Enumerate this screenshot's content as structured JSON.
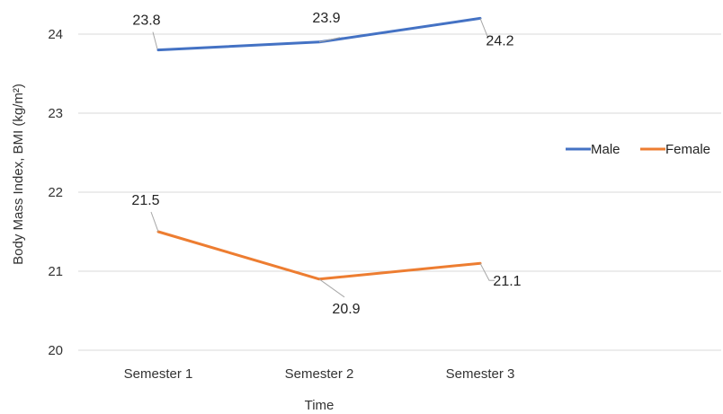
{
  "chart_data": {
    "type": "line",
    "title": "",
    "xlabel": "Time",
    "ylabel": "Body Mass Index, BMI (kg/m²)",
    "categories": [
      "Semester 1",
      "Semester 2",
      "Semester 3"
    ],
    "ylim": [
      20,
      24
    ],
    "yticks": [
      20,
      21,
      22,
      23,
      24
    ],
    "grid": true,
    "legend": "right",
    "series": [
      {
        "name": "Male",
        "color": "#4472C4",
        "values": [
          23.8,
          23.9,
          24.2
        ],
        "labels": [
          "23.8",
          "23.9",
          "24.2"
        ]
      },
      {
        "name": "Female",
        "color": "#ED7D31",
        "values": [
          21.5,
          20.9,
          21.1
        ],
        "labels": [
          "21.5",
          "20.9",
          "21.1"
        ]
      }
    ]
  }
}
